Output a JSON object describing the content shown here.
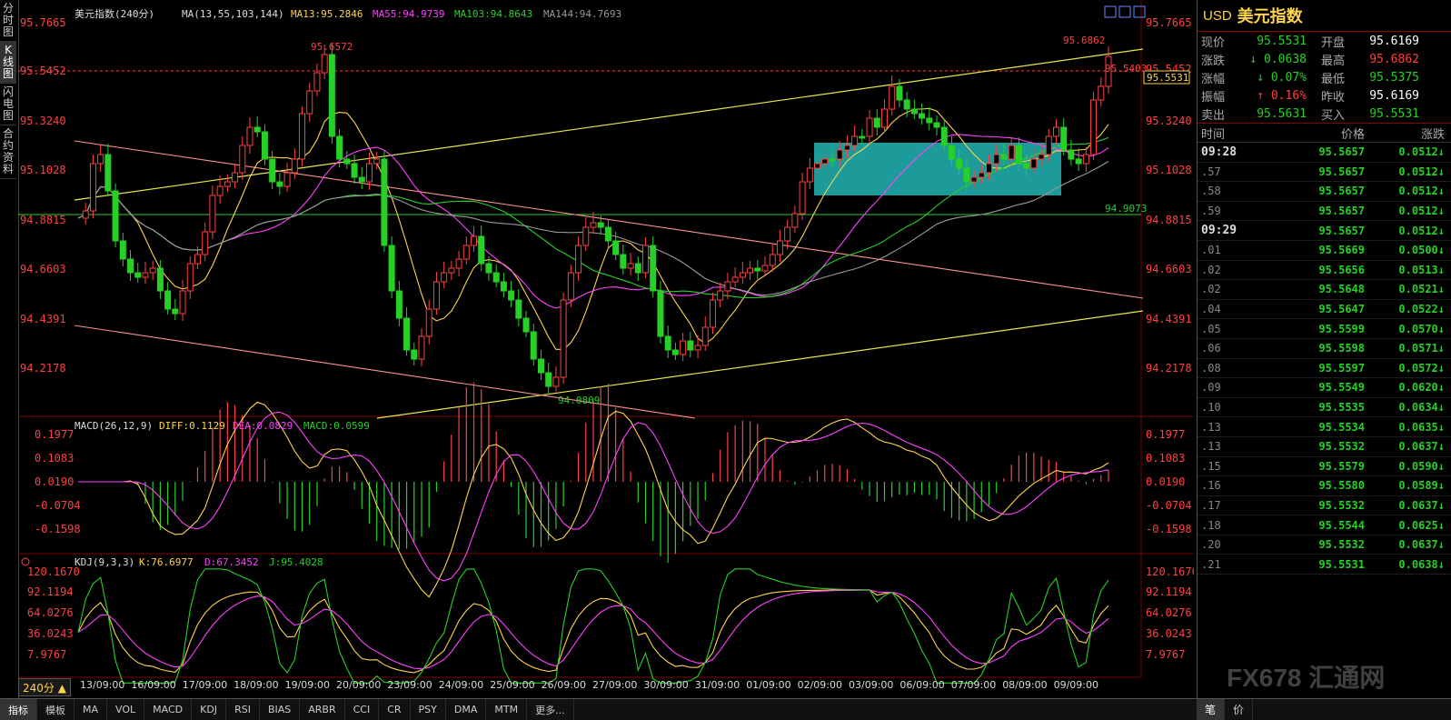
{
  "left_tabs": [
    "分时图",
    "K线图",
    "闪电图",
    "合约资料"
  ],
  "main_legend": {
    "symbol_period": "美元指数(240分)",
    "ma_params": "MA(13,55,103,144)",
    "ma13": "MA13:95.2846",
    "ma55": "MA55:94.9739",
    "ma103": "MA103:94.8643",
    "ma144": "MA144:94.7693"
  },
  "price_axis": [
    "95.7665",
    "95.5452",
    "95.3240",
    "95.1028",
    "94.8815",
    "94.6603",
    "94.4391",
    "94.2178"
  ],
  "price_annotations": {
    "high_left": "95.6572",
    "high_right": "95.6862",
    "low": "94.0809",
    "hline": "95.5403",
    "green_line": "94.9073",
    "current_box": "95.5531",
    "hidden_right_tick": "95.5452"
  },
  "macd_legend": {
    "params": "MACD(26,12,9)",
    "diff": "DIFF:0.1129",
    "dea": "DEA:0.0829",
    "macd": "MACD:0.0599"
  },
  "macd_axis": [
    "0.1977",
    "0.1083",
    "0.0190",
    "-0.0704",
    "-0.1598"
  ],
  "kdj_legend": {
    "params": "KDJ(9,3,3)",
    "k": "K:76.6977",
    "d": "D:67.3452",
    "j": "J:95.4028"
  },
  "kdj_axis": [
    "120.1670",
    "92.1194",
    "64.0276",
    "36.0243",
    "7.9767"
  ],
  "date_axis": [
    "13/09:00",
    "16/09:00",
    "17/09:00",
    "18/09:00",
    "19/09:00",
    "20/09:00",
    "23/09:00",
    "24/09:00",
    "25/09:00",
    "26/09:00",
    "27/09:00",
    "30/09:00",
    "31/09:00",
    "01/09:00",
    "02/09:00",
    "03/09:00",
    "06/09:00",
    "07/09:00",
    "08/09:00",
    "09/09:00"
  ],
  "period_button": "240分 ▲",
  "bottom_tabs": [
    "指标",
    "模板",
    "MA",
    "VOL",
    "MACD",
    "KDJ",
    "RSI",
    "BIAS",
    "ARBR",
    "CCI",
    "CR",
    "PSY",
    "DMA",
    "MTM",
    "更多..."
  ],
  "right_bottom_tabs": [
    "笔",
    "价"
  ],
  "quote": {
    "code": "USD",
    "name": "美元指数",
    "rows": [
      {
        "l1": "现价",
        "v1": "95.5531",
        "c1": "#27d027",
        "l2": "开盘",
        "v2": "95.6169",
        "c2": "#ffffff"
      },
      {
        "l1": "涨跌",
        "v1": "↓ 0.0638",
        "c1": "#27d027",
        "l2": "最高",
        "v2": "95.6862",
        "c2": "#ff4040"
      },
      {
        "l1": "涨幅",
        "v1": "↓ 0.07%",
        "c1": "#27d027",
        "l2": "最低",
        "v2": "95.5375",
        "c2": "#27d027"
      },
      {
        "l1": "振幅",
        "v1": "↑ 0.16%",
        "c1": "#ff4040",
        "l2": "昨收",
        "v2": "95.6169",
        "c2": "#ffffff"
      },
      {
        "l1": "卖出",
        "v1": "95.5631",
        "c1": "#27d027",
        "l2": "买入",
        "v2": "95.5531",
        "c2": "#27d027"
      }
    ]
  },
  "ticks_header": {
    "time": "时间",
    "price": "价格",
    "change": "涨跌"
  },
  "ticks": [
    {
      "time": "09:28",
      "major": true,
      "price": "95.5657",
      "chg": "0.0512↓"
    },
    {
      "time": ".57",
      "major": false,
      "price": "95.5657",
      "chg": "0.0512↓"
    },
    {
      "time": ".58",
      "major": false,
      "price": "95.5657",
      "chg": "0.0512↓"
    },
    {
      "time": ".59",
      "major": false,
      "price": "95.5657",
      "chg": "0.0512↓"
    },
    {
      "time": "09:29",
      "major": true,
      "price": "95.5657",
      "chg": "0.0512↓"
    },
    {
      "time": ".01",
      "major": false,
      "price": "95.5669",
      "chg": "0.0500↓"
    },
    {
      "time": ".02",
      "major": false,
      "price": "95.5656",
      "chg": "0.0513↓"
    },
    {
      "time": ".02",
      "major": false,
      "price": "95.5648",
      "chg": "0.0521↓"
    },
    {
      "time": ".04",
      "major": false,
      "price": "95.5647",
      "chg": "0.0522↓"
    },
    {
      "time": ".05",
      "major": false,
      "price": "95.5599",
      "chg": "0.0570↓"
    },
    {
      "time": ".06",
      "major": false,
      "price": "95.5598",
      "chg": "0.0571↓"
    },
    {
      "time": ".08",
      "major": false,
      "price": "95.5597",
      "chg": "0.0572↓"
    },
    {
      "time": ".09",
      "major": false,
      "price": "95.5549",
      "chg": "0.0620↓"
    },
    {
      "time": ".10",
      "major": false,
      "price": "95.5535",
      "chg": "0.0634↓"
    },
    {
      "time": ".13",
      "major": false,
      "price": "95.5534",
      "chg": "0.0635↓"
    },
    {
      "time": ".13",
      "major": false,
      "price": "95.5532",
      "chg": "0.0637↓"
    },
    {
      "time": ".15",
      "major": false,
      "price": "95.5579",
      "chg": "0.0590↓"
    },
    {
      "time": ".16",
      "major": false,
      "price": "95.5580",
      "chg": "0.0589↓"
    },
    {
      "time": ".17",
      "major": false,
      "price": "95.5532",
      "chg": "0.0637↓"
    },
    {
      "time": ".18",
      "major": false,
      "price": "95.5544",
      "chg": "0.0625↓"
    },
    {
      "time": ".20",
      "major": false,
      "price": "95.5532",
      "chg": "0.0637↓"
    },
    {
      "time": ".21",
      "major": false,
      "price": "95.5531",
      "chg": "0.0638↓"
    }
  ],
  "watermark": "FX678 汇通网",
  "colors": {
    "up": "#ff4040",
    "down": "#27d027",
    "yellow": "#ffd34d",
    "magenta": "#ff40ff",
    "box": "#22b5b5"
  }
}
